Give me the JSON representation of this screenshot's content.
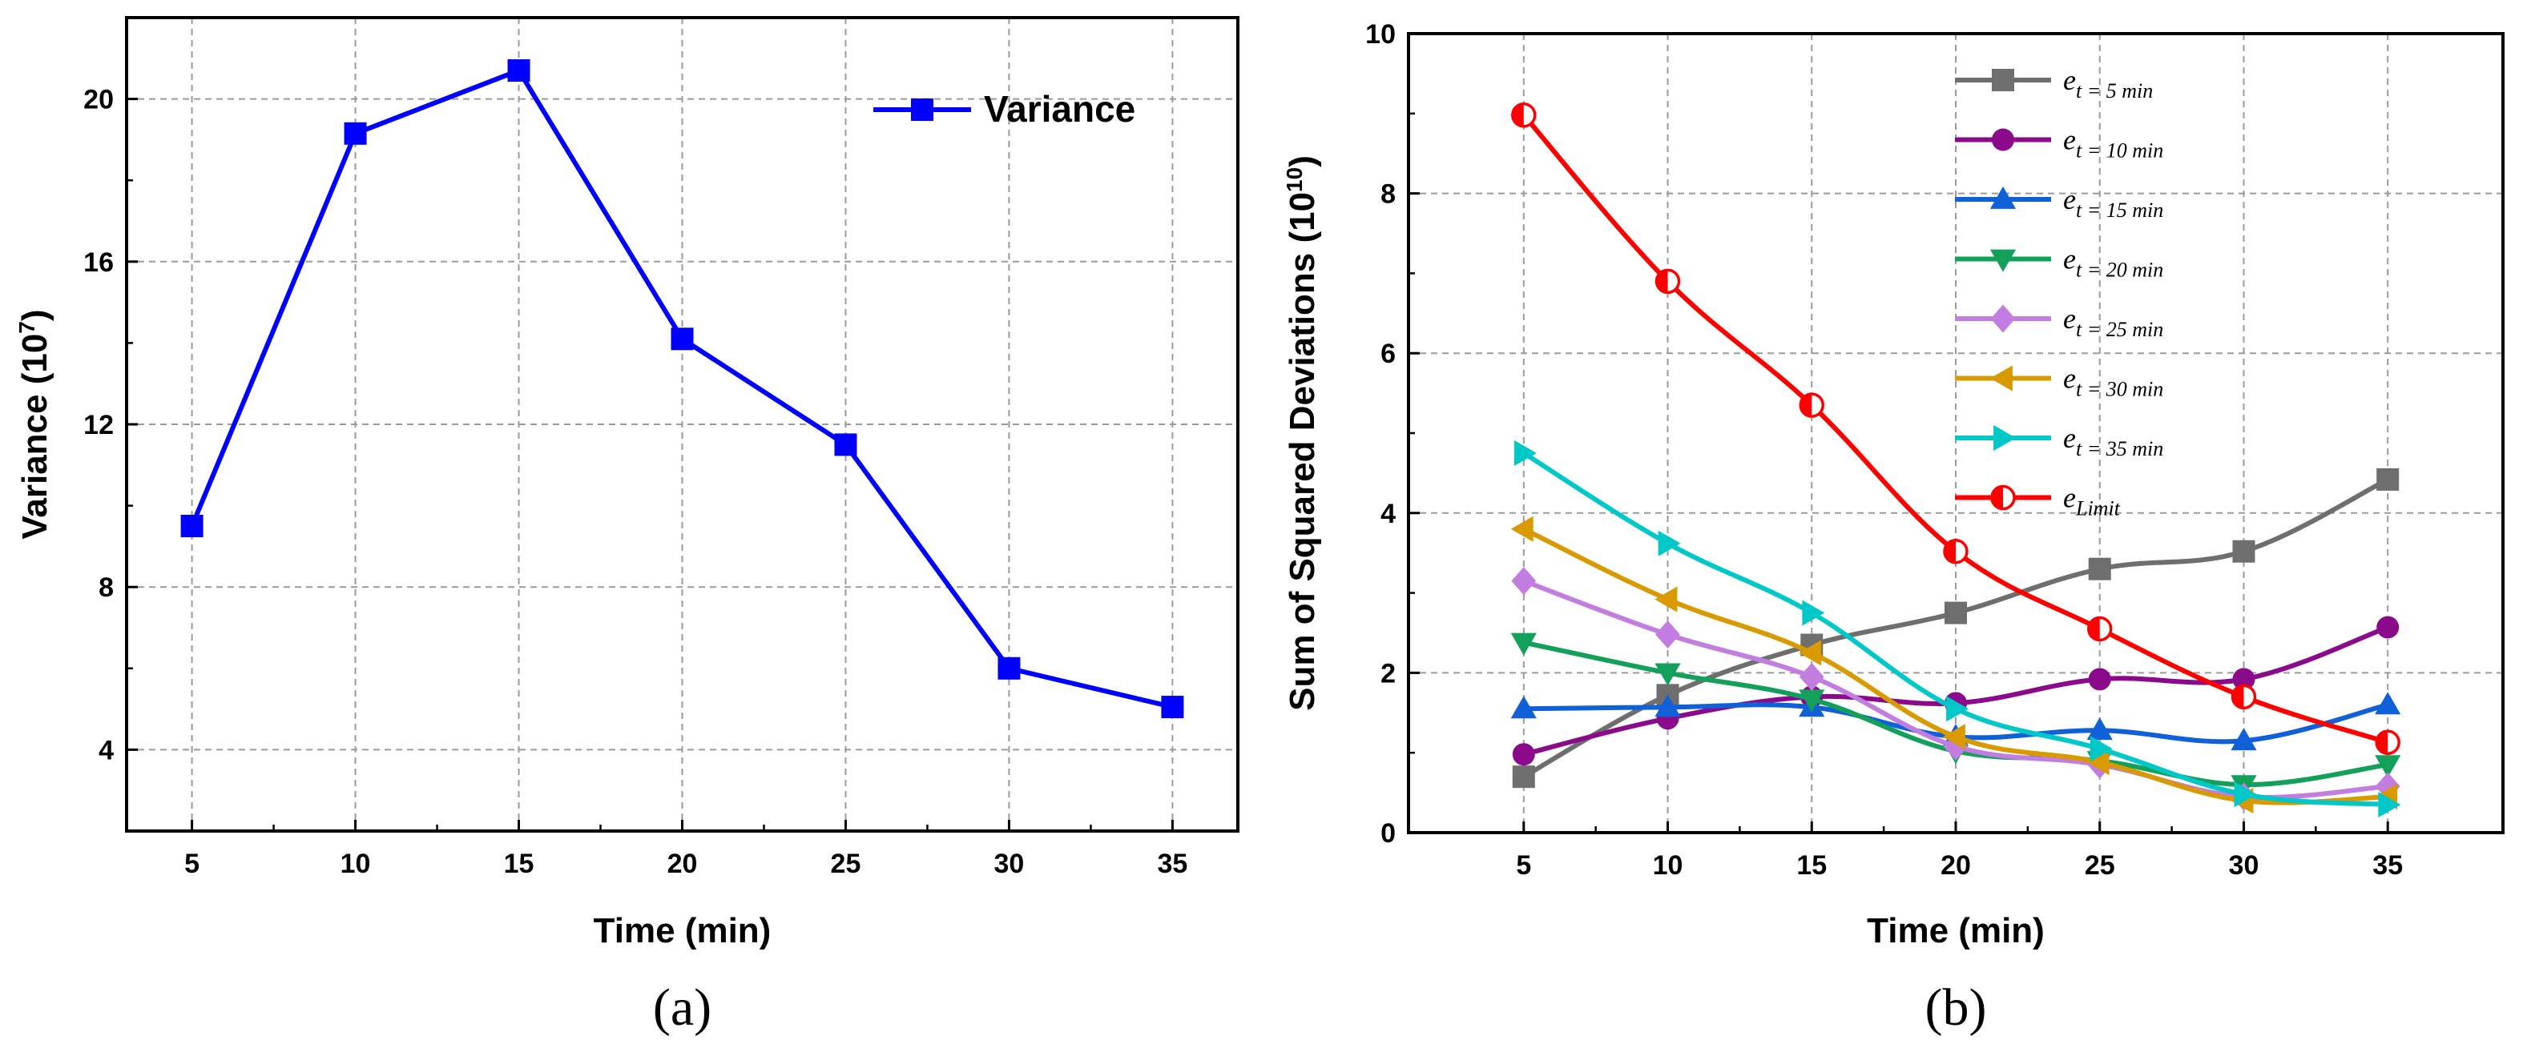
{
  "chart_data": [
    {
      "panel": "(a)",
      "type": "line",
      "title": "",
      "xlabel": "Time (min)",
      "ylabel": "Variance (10",
      "ylabel_exp": "7",
      "ylabel_close": ")",
      "x": [
        5,
        10,
        15,
        20,
        25,
        30,
        35
      ],
      "xlim": [
        3,
        37
      ],
      "ylim": [
        2,
        22
      ],
      "xticks": [
        5,
        10,
        15,
        20,
        25,
        30,
        35
      ],
      "yticks": [
        4,
        8,
        12,
        16,
        20
      ],
      "grid": true,
      "legend": "top-right",
      "series": [
        {
          "name": "Variance",
          "color": "#0000ff",
          "marker": "square",
          "values": [
            9.5,
            19.15,
            20.7,
            14.1,
            11.5,
            6.0,
            5.05
          ]
        }
      ]
    },
    {
      "panel": "(b)",
      "type": "line",
      "title": "",
      "xlabel": "Time (min)",
      "ylabel": "Sum of Squared Deviations (10",
      "ylabel_exp": "10",
      "ylabel_close": ")",
      "x": [
        5,
        10,
        15,
        20,
        25,
        30,
        35
      ],
      "xlim": [
        1,
        39
      ],
      "ylim": [
        0,
        10
      ],
      "xticks": [
        5,
        10,
        15,
        20,
        25,
        30,
        35
      ],
      "yticks": [
        0,
        2,
        4,
        6,
        8,
        10
      ],
      "grid": true,
      "legend": "top-right",
      "series": [
        {
          "name": "e",
          "sub": "t = 5 min",
          "color": "#6e6e6e",
          "marker": "square",
          "values": [
            0.7,
            1.72,
            2.35,
            2.75,
            3.3,
            3.52,
            4.42
          ]
        },
        {
          "name": "e",
          "sub": "t = 10 min",
          "color": "#8b0a8b",
          "marker": "circle",
          "values": [
            0.98,
            1.43,
            1.7,
            1.62,
            1.92,
            1.92,
            2.57
          ]
        },
        {
          "name": "e",
          "sub": "t = 15 min",
          "color": "#1060d8",
          "marker": "triangle-up",
          "values": [
            1.55,
            1.57,
            1.57,
            1.2,
            1.28,
            1.15,
            1.6
          ]
        },
        {
          "name": "e",
          "sub": "t = 20 min",
          "color": "#12a05a",
          "marker": "triangle-down",
          "values": [
            2.38,
            2.0,
            1.67,
            1.02,
            0.9,
            0.6,
            0.85
          ]
        },
        {
          "name": "e",
          "sub": "t = 25 min",
          "color": "#c27de0",
          "marker": "diamond",
          "values": [
            3.15,
            2.48,
            1.95,
            1.08,
            0.85,
            0.45,
            0.58
          ]
        },
        {
          "name": "e",
          "sub": "t = 30 min",
          "color": "#d89a00",
          "marker": "triangle-left",
          "values": [
            3.8,
            2.92,
            2.25,
            1.2,
            0.88,
            0.4,
            0.45
          ]
        },
        {
          "name": "e",
          "sub": "t = 35 min",
          "color": "#00c8c8",
          "marker": "triangle-right",
          "values": [
            4.75,
            3.62,
            2.75,
            1.55,
            1.05,
            0.48,
            0.35
          ]
        },
        {
          "name": "e",
          "sub": "Limit",
          "color": "#ff0000",
          "marker": "half-circle",
          "values": [
            8.98,
            6.9,
            5.35,
            3.52,
            2.55,
            1.7,
            1.13
          ]
        }
      ]
    }
  ]
}
